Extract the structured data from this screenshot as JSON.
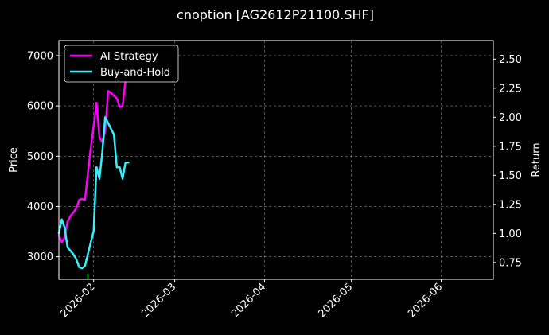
{
  "chart_data": {
    "type": "line",
    "title": "cnoption [AG2612P21100.SHF]",
    "xlabel": "",
    "ylabel": "Price",
    "y2label": "Return",
    "xlim": [
      "2026-01-20",
      "2026-06-19"
    ],
    "x_ticks": [
      "2026-02",
      "2026-03",
      "2026-04",
      "2026-05",
      "2026-06"
    ],
    "x_tick_dates": [
      "2026-02-01",
      "2026-03-01",
      "2026-04-01",
      "2026-05-01",
      "2026-06-01"
    ],
    "ylim": [
      2550,
      7300
    ],
    "y_ticks": [
      3000,
      4000,
      5000,
      6000,
      7000
    ],
    "y2lim": [
      0.605,
      2.66
    ],
    "y2_ticks": [
      0.75,
      1.0,
      1.25,
      1.5,
      1.75,
      2.0,
      2.25,
      2.5
    ],
    "y2_tick_labels": [
      "0.75",
      "1.00",
      "1.25",
      "1.50",
      "1.75",
      "2.00",
      "2.25",
      "2.50"
    ],
    "grid": true,
    "legend_position": "top-left",
    "series": [
      {
        "name": "AI Strategy",
        "axis": "left",
        "color": "#ff00ff",
        "x": [
          "2026-01-20",
          "2026-01-21",
          "2026-01-22",
          "2026-01-23",
          "2026-01-24",
          "2026-01-25",
          "2026-01-26",
          "2026-01-27",
          "2026-01-28",
          "2026-01-29",
          "2026-01-30",
          "2026-01-31",
          "2026-02-01",
          "2026-02-02",
          "2026-02-03",
          "2026-02-04",
          "2026-02-05",
          "2026-02-06",
          "2026-02-07",
          "2026-02-08",
          "2026-02-09",
          "2026-02-10",
          "2026-02-11",
          "2026-02-12",
          "2026-02-13"
        ],
        "values": [
          3420,
          3290,
          3380,
          3700,
          3810,
          3880,
          3960,
          4130,
          4150,
          4130,
          4650,
          5150,
          5600,
          6060,
          5370,
          5280,
          5500,
          6300,
          6260,
          6200,
          6150,
          5980,
          6000,
          6500,
          7000
        ]
      },
      {
        "name": "Buy-and-Hold",
        "axis": "right",
        "color": "#33f0ff",
        "x": [
          "2026-01-20",
          "2026-01-21",
          "2026-01-22",
          "2026-01-23",
          "2026-01-24",
          "2026-01-25",
          "2026-01-26",
          "2026-01-27",
          "2026-01-28",
          "2026-01-29",
          "2026-01-30",
          "2026-01-31",
          "2026-02-01",
          "2026-02-02",
          "2026-02-03",
          "2026-02-04",
          "2026-02-05",
          "2026-02-06",
          "2026-02-07",
          "2026-02-08",
          "2026-02-09",
          "2026-02-10",
          "2026-02-11",
          "2026-02-12",
          "2026-02-13"
        ],
        "values": [
          1.0,
          1.12,
          1.05,
          0.88,
          0.85,
          0.82,
          0.78,
          0.71,
          0.7,
          0.72,
          0.82,
          0.92,
          1.02,
          1.57,
          1.47,
          1.7,
          2.0,
          1.95,
          1.9,
          1.85,
          1.57,
          1.57,
          1.47,
          1.61,
          1.61
        ]
      }
    ],
    "annotations": [
      {
        "type": "marker",
        "x": "2026-01-30",
        "y": 2600,
        "color": "#00cc00"
      }
    ]
  }
}
